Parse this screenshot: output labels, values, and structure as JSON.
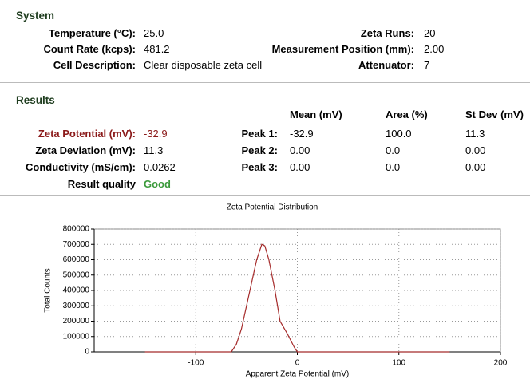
{
  "system": {
    "title": "System",
    "left": [
      {
        "label": "Temperature (°C):",
        "value": "25.0"
      },
      {
        "label": "Count Rate (kcps):",
        "value": "481.2"
      },
      {
        "label": "Cell Description:",
        "value": "Clear disposable zeta cell"
      }
    ],
    "right": [
      {
        "label": "Zeta Runs:",
        "value": "20"
      },
      {
        "label": "Measurement Position (mm):",
        "value": "2.00"
      },
      {
        "label": "Attenuator:",
        "value": "7"
      }
    ]
  },
  "results": {
    "title": "Results",
    "left": [
      {
        "label": "Zeta Potential (mV):",
        "value": "-32.9"
      },
      {
        "label": "Zeta Deviation (mV):",
        "value": "11.3"
      },
      {
        "label": "Conductivity (mS/cm):",
        "value": "0.0262"
      },
      {
        "label": "Result quality",
        "value": "Good"
      }
    ],
    "peak_headers": [
      "Mean (mV)",
      "Area (%)",
      "St Dev (mV)"
    ],
    "peaks": [
      [
        "Peak 1:",
        "-32.9",
        "100.0",
        "11.3"
      ],
      [
        "Peak 2:",
        "0.00",
        "0.0",
        "0.00"
      ],
      [
        "Peak 3:",
        "0.00",
        "0.0",
        "0.00"
      ]
    ]
  },
  "chart_data": {
    "type": "line",
    "title": "Zeta Potential Distribution",
    "x_label": "Apparent Zeta Potential (mV)",
    "y_label": "Total Counts",
    "xlim": [
      -200,
      200
    ],
    "xticks": [
      -100,
      0,
      100,
      200
    ],
    "ylim": [
      0,
      800000
    ],
    "yticks": [
      0,
      100000,
      200000,
      300000,
      400000,
      500000,
      600000,
      700000,
      800000
    ],
    "grid": true,
    "series": [
      {
        "name": "Zeta Potential Distribution",
        "color": "#a52a2a",
        "x": [
          -150,
          -65,
          -60,
          -55,
          -50,
          -45,
          -40,
          -35,
          -32,
          -28,
          -22,
          -17,
          -10,
          -3,
          0,
          150
        ],
        "values": [
          0,
          0,
          50000,
          150000,
          300000,
          450000,
          600000,
          700000,
          690000,
          600000,
          400000,
          200000,
          120000,
          30000,
          0,
          0
        ]
      }
    ]
  }
}
